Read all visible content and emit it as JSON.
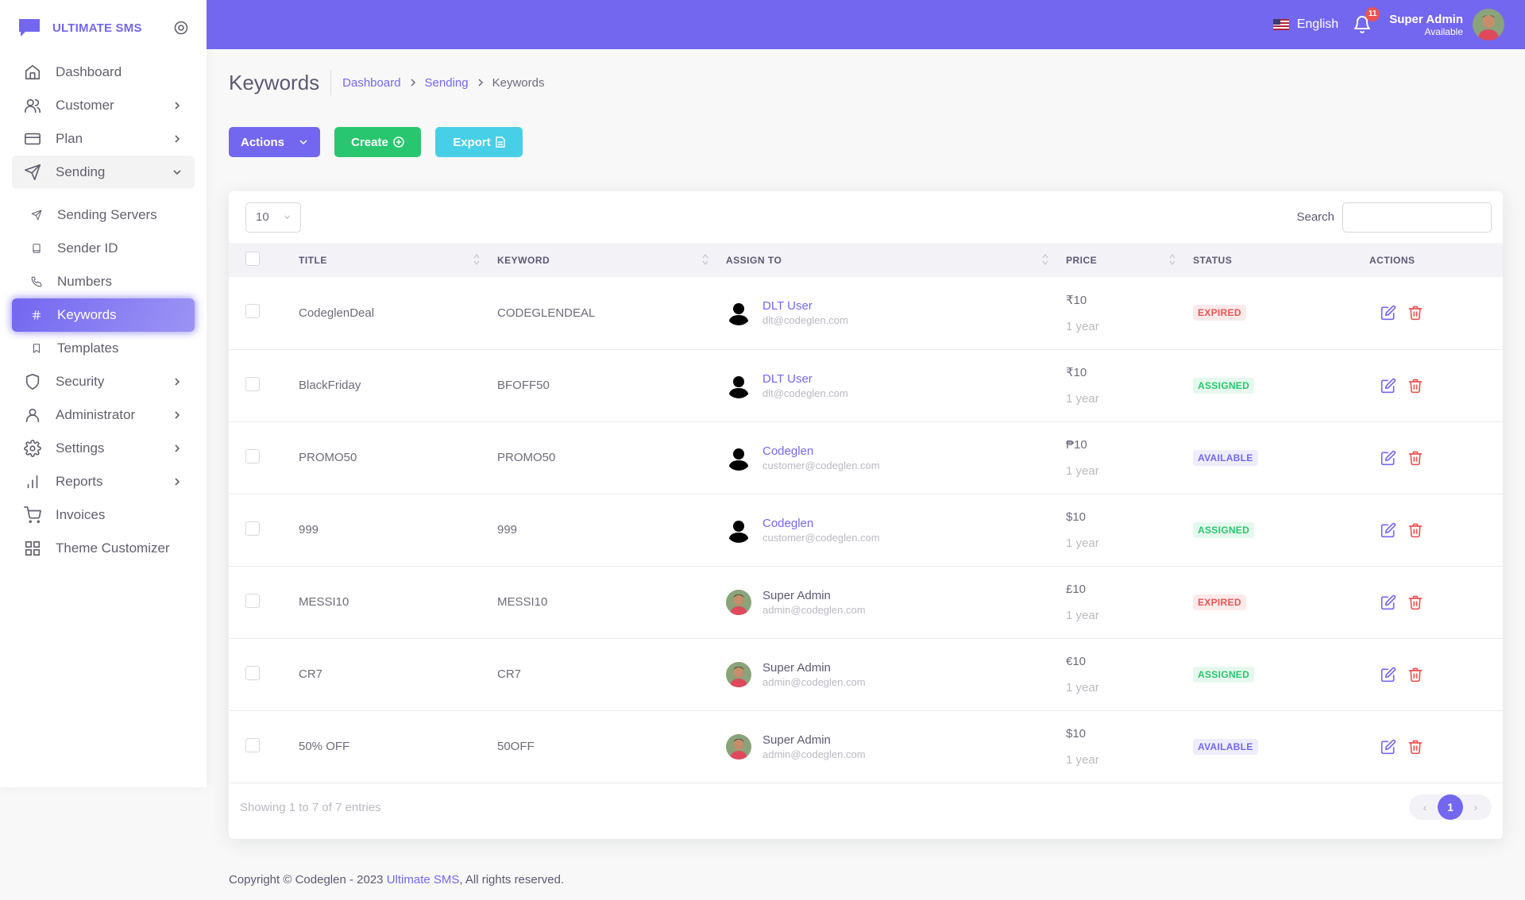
{
  "brand": {
    "name": "ULTIMATE SMS"
  },
  "sidebar": {
    "items": [
      {
        "label": "Dashboard",
        "icon": "home-icon",
        "chevron": false
      },
      {
        "label": "Customer",
        "icon": "users-icon",
        "chevron": true
      },
      {
        "label": "Plan",
        "icon": "credit-card-icon",
        "chevron": true
      },
      {
        "label": "Sending",
        "icon": "send-icon",
        "chevron": true,
        "open": true
      },
      {
        "label": "Sending Servers",
        "icon": "send-small-icon",
        "sub": true
      },
      {
        "label": "Sender ID",
        "icon": "book-icon",
        "sub": true
      },
      {
        "label": "Numbers",
        "icon": "phone-icon",
        "sub": true
      },
      {
        "label": "Keywords",
        "icon": "hash-icon",
        "sub": true,
        "active": true
      },
      {
        "label": "Templates",
        "icon": "bookmark-icon",
        "sub": true
      },
      {
        "label": "Security",
        "icon": "shield-icon",
        "chevron": true
      },
      {
        "label": "Administrator",
        "icon": "user-icon",
        "chevron": true
      },
      {
        "label": "Settings",
        "icon": "settings-icon",
        "chevron": true
      },
      {
        "label": "Reports",
        "icon": "bar-chart-icon",
        "chevron": true
      },
      {
        "label": "Invoices",
        "icon": "shopping-cart-icon",
        "chevron": false
      },
      {
        "label": "Theme Customizer",
        "icon": "grid-icon",
        "chevron": false
      }
    ]
  },
  "topbar": {
    "language": "English",
    "notification_count": "11",
    "user_name": "Super Admin",
    "user_status": "Available"
  },
  "page": {
    "title": "Keywords",
    "breadcrumb": [
      "Dashboard",
      "Sending",
      "Keywords"
    ]
  },
  "toolbar": {
    "actions_label": "Actions",
    "create_label": "Create",
    "export_label": "Export"
  },
  "table_controls": {
    "page_length": "10",
    "search_label": "Search",
    "search_value": ""
  },
  "table": {
    "columns": [
      "TITLE",
      "KEYWORD",
      "ASSIGN TO",
      "PRICE",
      "STATUS",
      "ACTIONS"
    ],
    "rows": [
      {
        "title": "CodeglenDeal",
        "keyword": "CODEGLENDEAL",
        "assign_name": "DLT User",
        "assign_email": "dlt@codeglen.com",
        "assign_type": "silhouette",
        "price": "₹10",
        "period": "1 year",
        "status": "EXPIRED",
        "status_type": "expired"
      },
      {
        "title": "BlackFriday",
        "keyword": "BFOFF50",
        "assign_name": "DLT User",
        "assign_email": "dlt@codeglen.com",
        "assign_type": "silhouette",
        "price": "₹10",
        "period": "1 year",
        "status": "ASSIGNED",
        "status_type": "assigned"
      },
      {
        "title": "PROMO50",
        "keyword": "PROMO50",
        "assign_name": "Codeglen",
        "assign_email": "customer@codeglen.com",
        "assign_type": "silhouette",
        "price": "₱10",
        "period": "1 year",
        "status": "AVAILABLE",
        "status_type": "available"
      },
      {
        "title": "999",
        "keyword": "999",
        "assign_name": "Codeglen",
        "assign_email": "customer@codeglen.com",
        "assign_type": "silhouette",
        "price": "$10",
        "period": "1 year",
        "status": "ASSIGNED",
        "status_type": "assigned"
      },
      {
        "title": "MESSI10",
        "keyword": "MESSI10",
        "assign_name": "Super Admin",
        "assign_email": "admin@codeglen.com",
        "assign_type": "photo",
        "price": "£10",
        "period": "1 year",
        "status": "EXPIRED",
        "status_type": "expired"
      },
      {
        "title": "CR7",
        "keyword": "CR7",
        "assign_name": "Super Admin",
        "assign_email": "admin@codeglen.com",
        "assign_type": "photo",
        "price": "€10",
        "period": "1 year",
        "status": "ASSIGNED",
        "status_type": "assigned"
      },
      {
        "title": "50% OFF",
        "keyword": "50OFF",
        "assign_name": "Super Admin",
        "assign_email": "admin@codeglen.com",
        "assign_type": "photo",
        "price": "$10",
        "period": "1 year",
        "status": "AVAILABLE",
        "status_type": "available"
      }
    ]
  },
  "pagination": {
    "info": "Showing 1 to 7 of 7 entries",
    "current": "1",
    "prev": "‹",
    "next": "›"
  },
  "footer": {
    "prefix": "Copyright © Codeglen - 2023",
    "link": "Ultimate SMS",
    "suffix": ", All rights reserved."
  },
  "colors": {
    "primary": "#7367f0",
    "success": "#28c76f",
    "info": "#48cfe8",
    "danger": "#ea5455"
  }
}
